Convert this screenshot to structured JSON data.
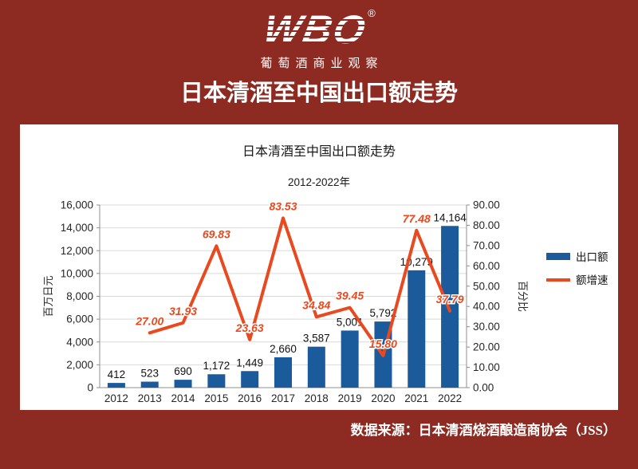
{
  "page": {
    "bg_color": "#8D2A21",
    "logo": {
      "text": "WBO",
      "reg_mark": "®",
      "subtitle": "葡萄酒商业观察"
    },
    "title": "日本清酒至中国出口额走势",
    "source": "数据来源：日本清酒烧酒酿造商协会（JSS）"
  },
  "chart_data": {
    "type": "bar",
    "title": "日本清酒至中国出口额走势",
    "subtitle": "2012-2022年",
    "categories": [
      "2012",
      "2013",
      "2014",
      "2015",
      "2016",
      "2017",
      "2018",
      "2019",
      "2020",
      "2021",
      "2022"
    ],
    "series": [
      {
        "name": "出口额",
        "type": "bar",
        "axis": "left",
        "color": "#1B5A9B",
        "values": [
          412,
          523,
          690,
          1172,
          1449,
          2660,
          3587,
          5001,
          5792,
          10279,
          14164
        ]
      },
      {
        "name": "额增速",
        "type": "line",
        "axis": "right",
        "color": "#E8491F",
        "values": [
          null,
          27.0,
          31.93,
          69.83,
          23.63,
          83.53,
          34.84,
          39.45,
          15.8,
          77.48,
          37.79
        ]
      }
    ],
    "left_axis": {
      "label": "百万日元",
      "min": 0,
      "max": 16000,
      "step": 2000
    },
    "right_axis": {
      "label": "百分比",
      "min": 0,
      "max": 90,
      "step": 10
    },
    "legend_position": "right",
    "grid": true
  }
}
